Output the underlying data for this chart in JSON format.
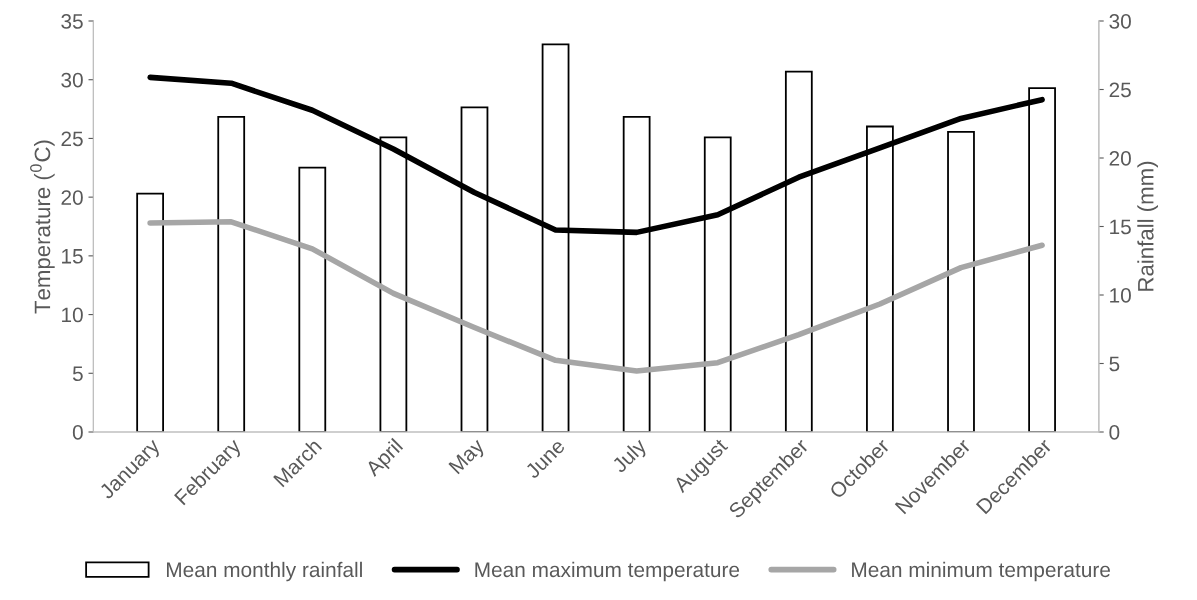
{
  "chart_data": {
    "type": "bar",
    "categories": [
      "January",
      "February",
      "March",
      "April",
      "May",
      "June",
      "July",
      "August",
      "September",
      "October",
      "November",
      "December"
    ],
    "ylabel": "Temperature ($^{0}$C)",
    "y2label": "Rainfall (mm)",
    "ylim": [
      0,
      35
    ],
    "yticks": [
      0,
      5,
      10,
      15,
      20,
      25,
      30,
      35
    ],
    "y2lim": [
      0,
      30
    ],
    "y2ticks": [
      0,
      5,
      10,
      15,
      20,
      25,
      30
    ],
    "grid": false,
    "legend": "bottom",
    "series": [
      {
        "name": "Mean monthly rainfall",
        "axis": "y2",
        "color": "#ffffff",
        "values": [
          17.4,
          23.0,
          19.3,
          21.5,
          23.7,
          28.3,
          23.0,
          21.5,
          26.3,
          22.3,
          21.9,
          25.1
        ]
      },
      {
        "name": "Mean maximum temperature",
        "type": "line",
        "color": "#000000",
        "values": [
          30.2,
          29.7,
          27.4,
          24.1,
          20.4,
          17.2,
          17.0,
          18.5,
          21.7,
          24.2,
          26.7,
          28.3
        ]
      },
      {
        "name": "Mean minimum temperature",
        "type": "line",
        "color": "#a6a6a6",
        "values": [
          17.8,
          17.9,
          15.6,
          11.8,
          8.9,
          6.1,
          5.2,
          5.9,
          8.3,
          10.9,
          14.0,
          15.9
        ]
      }
    ]
  }
}
